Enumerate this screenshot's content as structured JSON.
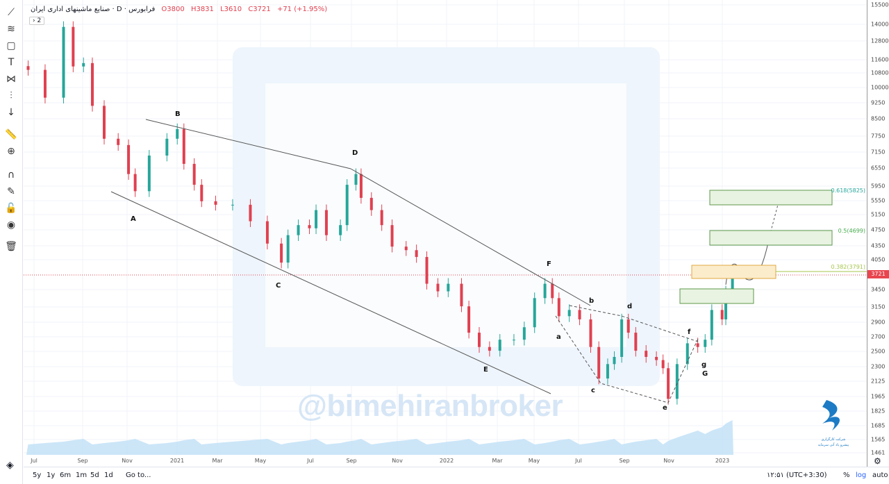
{
  "header": {
    "symbol": "صنایع ماشینهای اداری ایران",
    "interval": "D",
    "exchange": "فرابورس",
    "open": "O3800",
    "high": "H3831",
    "low": "L3610",
    "close": "C3721",
    "change": "+71 (+1.95%)",
    "collapse": "› 2"
  },
  "toolbar": [
    "crosshair-line-icon",
    "fib-tool-icon",
    "rectangle-icon",
    "text-icon",
    "pattern-icon",
    "forecast-icon",
    "arrow-down-icon",
    "ruler-icon",
    "zoom-in-icon",
    "magnet-icon",
    "lock-drawing-icon",
    "lock-icon",
    "eye-icon",
    "trash-icon"
  ],
  "price_axis": {
    "ticks": [
      "15500",
      "14000",
      "12800",
      "11600",
      "10800",
      "10000",
      "9250",
      "8500",
      "7750",
      "7150",
      "6550",
      "5950",
      "5550",
      "5150",
      "4750",
      "4350",
      "4050",
      "3450",
      "3150",
      "2900",
      "2700",
      "2500",
      "2300",
      "2125",
      "1965",
      "1825",
      "1685",
      "1565",
      "1461"
    ],
    "current": "3721",
    "scale": "log"
  },
  "time_axis": [
    "Jul",
    "Sep",
    "Nov",
    "2021",
    "Mar",
    "May",
    "Jul",
    "Sep",
    "Nov",
    "2022",
    "Mar",
    "May",
    "Jul",
    "Sep",
    "Nov",
    "2023"
  ],
  "fib_levels": [
    {
      "label": "0.618(5825)",
      "color": "#26a69a"
    },
    {
      "label": "0.5(4699)",
      "color": "#4caf50"
    },
    {
      "label": "0.382(3791)",
      "color": "#a5c64b"
    }
  ],
  "wave_labels": {
    "A": "A",
    "B": "B",
    "C": "C",
    "D": "D",
    "E": "E",
    "F": "F",
    "G": "G",
    "a": "a",
    "b": "b",
    "c": "c",
    "d": "d",
    "e": "e",
    "f": "f",
    "g": "g"
  },
  "watermark": "@bimehiranbroker",
  "logo": {
    "line1": "شرکت کارگزاری",
    "line2": "پیشرو یاد آتی سرمایه"
  },
  "bottom": {
    "ranges": [
      "5y",
      "1y",
      "6m",
      "1m",
      "5d",
      "1d"
    ],
    "goto": "Go to...",
    "time": "۱۲:۵۱ (UTC+3:30)",
    "percent": "%",
    "log": "log",
    "auto": "auto"
  },
  "colors": {
    "up": "#26a69a",
    "down": "#e04050",
    "volume": "#8fc8ee",
    "current_line": "#e04050"
  },
  "chart_data": {
    "type": "candlestick",
    "yscale": "log",
    "ylim": [
      1461,
      15500
    ],
    "series": [
      [
        "2020-06-23",
        11000
      ],
      [
        "2020-07-16",
        9500
      ],
      [
        "2020-08-10",
        13800
      ],
      [
        "2020-08-23",
        11200
      ],
      [
        "2020-09-06",
        11400
      ],
      [
        "2020-09-18",
        9100
      ],
      [
        "2020-10-04",
        7650
      ],
      [
        "2020-10-23",
        7400
      ],
      [
        "2020-11-06",
        6350
      ],
      [
        "2020-11-15",
        5800
      ],
      [
        "2020-12-04",
        7000
      ],
      [
        "2020-12-28",
        7650
      ],
      [
        "2021-01-11",
        8050
      ],
      [
        "2021-01-20",
        6700
      ],
      [
        "2021-02-03",
        6000
      ],
      [
        "2021-02-13",
        5500
      ],
      [
        "2021-03-04",
        5400
      ],
      [
        "2021-03-27",
        5400
      ],
      [
        "2021-04-20",
        4950
      ],
      [
        "2021-05-13",
        4400
      ],
      [
        "2021-06-01",
        3980
      ],
      [
        "2021-06-10",
        4600
      ],
      [
        "2021-06-24",
        4850
      ],
      [
        "2021-07-09",
        4770
      ],
      [
        "2021-07-18",
        5250
      ],
      [
        "2021-08-01",
        4600
      ],
      [
        "2021-08-20",
        4850
      ],
      [
        "2021-08-29",
        6000
      ],
      [
        "2021-09-10",
        6350
      ],
      [
        "2021-09-17",
        5600
      ],
      [
        "2021-10-01",
        5250
      ],
      [
        "2021-10-15",
        4850
      ],
      [
        "2021-10-29",
        4330
      ],
      [
        "2021-11-17",
        4250
      ],
      [
        "2021-12-01",
        4100
      ],
      [
        "2021-12-15",
        3560
      ],
      [
        "2021-12-30",
        3420
      ],
      [
        "2022-01-13",
        3560
      ],
      [
        "2022-01-31",
        3160
      ],
      [
        "2022-02-10",
        2750
      ],
      [
        "2022-02-24",
        2550
      ],
      [
        "2022-03-10",
        2500
      ],
      [
        "2022-03-24",
        2650
      ],
      [
        "2022-04-12",
        2650
      ],
      [
        "2022-04-26",
        2830
      ],
      [
        "2022-05-10",
        3300
      ],
      [
        "2022-05-24",
        3560
      ],
      [
        "2022-06-03",
        3300
      ],
      [
        "2022-06-12",
        3000
      ],
      [
        "2022-06-26",
        3100
      ],
      [
        "2022-07-10",
        2950
      ],
      [
        "2022-07-25",
        2550
      ],
      [
        "2022-08-05",
        2160
      ],
      [
        "2022-08-17",
        2330
      ],
      [
        "2022-08-26",
        2420
      ],
      [
        "2022-09-05",
        2950
      ],
      [
        "2022-09-14",
        2750
      ],
      [
        "2022-09-24",
        2500
      ],
      [
        "2022-10-08",
        2420
      ],
      [
        "2022-10-22",
        2380
      ],
      [
        "2022-10-31",
        2280
      ],
      [
        "2022-11-07",
        1940
      ],
      [
        "2022-11-19",
        2330
      ],
      [
        "2022-12-03",
        2600
      ],
      [
        "2022-12-17",
        2550
      ],
      [
        "2022-12-27",
        2650
      ],
      [
        "2023-01-05",
        3100
      ],
      [
        "2023-01-19",
        2950
      ],
      [
        "2023-01-24",
        3420
      ],
      [
        "2023-02-02",
        3721
      ]
    ]
  }
}
